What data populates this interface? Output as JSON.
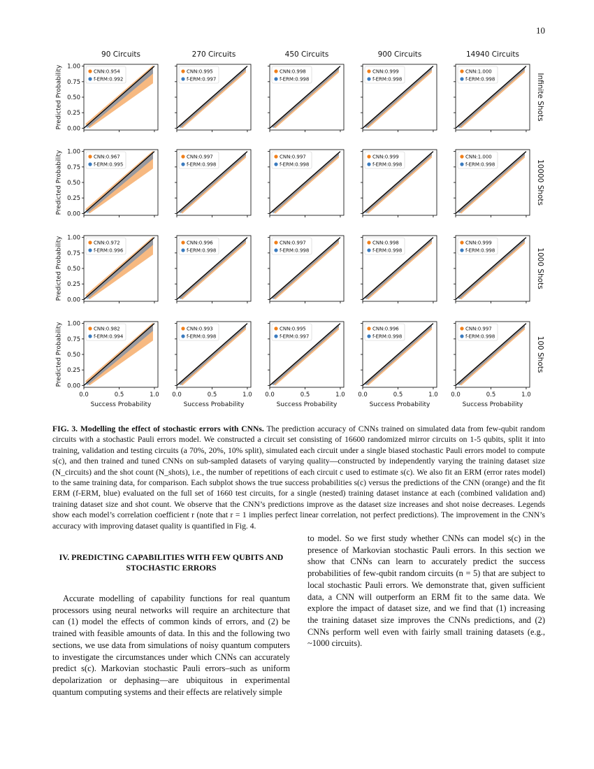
{
  "page_number": "10",
  "figure": {
    "columns": [
      "90 Circuits",
      "270 Circuits",
      "450 Circuits",
      "900 Circuits",
      "14940 Circuits"
    ],
    "rows": [
      "Infinite Shots",
      "10000 Shots",
      "1000 Shots",
      "100 Shots"
    ],
    "x_label": "Success Probability",
    "y_label": "Predicted Probability",
    "xlim": [
      0,
      1.05
    ],
    "ylim": [
      -0.03,
      1.03
    ],
    "xticks": [
      {
        "value": 0,
        "label": "0.0"
      },
      {
        "value": 0.5,
        "label": "0.5"
      },
      {
        "value": 1,
        "label": "1.0"
      }
    ],
    "yticks": [
      {
        "value": 0,
        "label": "0.00"
      },
      {
        "value": 0.25,
        "label": "0.25"
      },
      {
        "value": 0.5,
        "label": "0.50"
      },
      {
        "value": 0.75,
        "label": "0.75"
      },
      {
        "value": 1,
        "label": "1.00"
      }
    ],
    "series_colors": [
      "#f07f1a",
      "#3b7bbf"
    ],
    "legends": [
      [
        [
          "CNN:0.954",
          "f-ERM:0.992"
        ],
        [
          "CNN:0.995",
          "f-ERM:0.997"
        ],
        [
          "CNN:0.998",
          "f-ERM:0.998"
        ],
        [
          "CNN:0.999",
          "f-ERM:0.998"
        ],
        [
          "CNN:1.000",
          "f-ERM:0.998"
        ]
      ],
      [
        [
          "CNN:0.967",
          "f-ERM:0.995"
        ],
        [
          "CNN:0.997",
          "f-ERM:0.998"
        ],
        [
          "CNN:0.997",
          "f-ERM:0.998"
        ],
        [
          "CNN:0.999",
          "f-ERM:0.998"
        ],
        [
          "CNN:1.000",
          "f-ERM:0.998"
        ]
      ],
      [
        [
          "CNN:0.972",
          "f-ERM:0.996"
        ],
        [
          "CNN:0.996",
          "f-ERM:0.998"
        ],
        [
          "CNN:0.997",
          "f-ERM:0.998"
        ],
        [
          "CNN:0.998",
          "f-ERM:0.998"
        ],
        [
          "CNN:0.999",
          "f-ERM:0.998"
        ]
      ],
      [
        [
          "CNN:0.982",
          "f-ERM:0.994"
        ],
        [
          "CNN:0.993",
          "f-ERM:0.998"
        ],
        [
          "CNN:0.995",
          "f-ERM:0.997"
        ],
        [
          "CNN:0.996",
          "f-ERM:0.998"
        ],
        [
          "CNN:0.997",
          "f-ERM:0.998"
        ]
      ]
    ]
  },
  "caption": {
    "label": "FIG. 3.",
    "heading": "Modelling the effect of stochastic errors with CNNs.",
    "text": "The prediction accuracy of CNNs trained on simulated data from few-qubit random circuits with a stochastic Pauli errors model. We constructed a circuit set consisting of 16600 randomized mirror circuits on 1-5 qubits, split it into training, validation and testing circuits (a 70%, 20%, 10% split), simulated each circuit under a single biased stochastic Pauli errors model to compute s(c), and then trained and tuned CNNs on sub-sampled datasets of varying quality—constructed by independently varying the training dataset size (N_circuits) and the shot count (N_shots), i.e., the number of repetitions of each circuit c used to estimate s(c). We also fit an ERM (error rates model) to the same training data, for comparison. Each subplot shows the true success probabilities s(c) versus the predictions of the CNN (orange) and the fit ERM (f-ERM, blue) evaluated on the full set of 1660 test circuits, for a single (nested) training dataset instance at each (combined validation and) training dataset size and shot count. We observe that the CNN’s predictions improve as the dataset size increases and shot noise decreases. Legends show each model’s correlation coefficient r (note that r = 1 implies perfect linear correlation, not perfect predictions). The improvement in the CNN’s accuracy with improving dataset quality is quantified in Fig. 4."
  },
  "section": {
    "heading": "IV.   PREDICTING CAPABILITIES WITH FEW QUBITS AND STOCHASTIC ERRORS",
    "left_paragraph": "Accurate modelling of capability functions for real quantum processors using neural networks will require an architecture that can (1) model the effects of common kinds of errors, and (2) be trained with feasible amounts of data. In this and the following two sections, we use data from simulations of noisy quantum computers to investigate the circumstances under which CNNs can accurately predict s(c). Markovian stochastic Pauli errors–such as uniform depolarization or dephasing—are ubiquitous in experimental quantum computing systems and their effects are relatively simple",
    "right_paragraph": "to model. So we first study whether CNNs can model s(c) in the presence of Markovian stochastic Pauli errors. In this section we show that CNNs can learn to accurately predict the success probabilities of few-qubit random circuits (n = 5) that are subject to local stochastic Pauli errors. We demonstrate that, given sufficient data, a CNN will outperform an ERM fit to the same data. We explore the impact of dataset size, and we find that (1) increasing the training dataset size improves the CNNs predictions, and (2) CNNs perform well even with fairly small training datasets (e.g., ~1000 circuits)."
  }
}
